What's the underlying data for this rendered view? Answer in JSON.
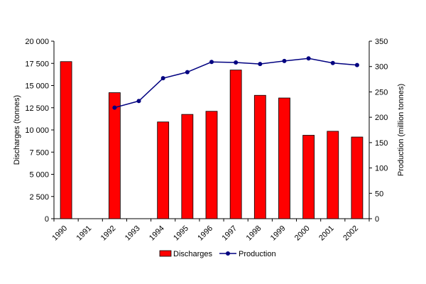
{
  "chart_data": {
    "type": "bar",
    "title": "",
    "categories": [
      "1990",
      "1991",
      "1992",
      "1993",
      "1994",
      "1995",
      "1996",
      "1997",
      "1998",
      "1999",
      "2000",
      "2001",
      "2002"
    ],
    "series": [
      {
        "name": "Discharges",
        "type": "bar",
        "axis": "left",
        "color": "#FF0000",
        "values": [
          17700,
          null,
          14200,
          null,
          10900,
          11750,
          12100,
          16750,
          13900,
          13600,
          9400,
          9850,
          9200
        ]
      },
      {
        "name": "Production",
        "type": "line",
        "axis": "right",
        "color": "#000080",
        "values": [
          null,
          null,
          219,
          232,
          277,
          289,
          309,
          308,
          305,
          311,
          316,
          307,
          303
        ]
      }
    ],
    "ylabel": "Discharges (tonnes)",
    "y2label": "Production (million tonnes)",
    "ylim": [
      0,
      20000
    ],
    "y2lim": [
      0,
      350
    ],
    "yticks": [
      "0",
      "2 500",
      "5 000",
      "7 500",
      "10 000",
      "12 500",
      "15 000",
      "17 500",
      "20 000"
    ],
    "y2ticks": [
      "0",
      "50",
      "100",
      "150",
      "200",
      "250",
      "300",
      "350"
    ],
    "grid": false,
    "legend": {
      "position": "bottom",
      "items": [
        "Discharges",
        "Production"
      ]
    }
  }
}
